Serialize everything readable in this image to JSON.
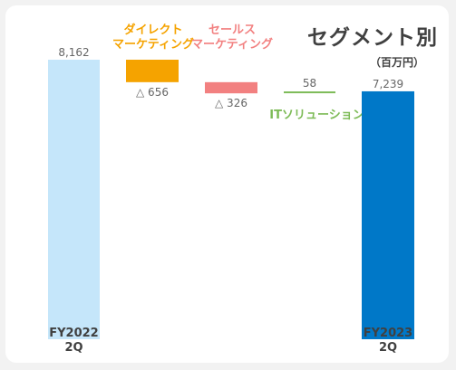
{
  "title": "セグメント別",
  "unit": "（百万円）",
  "chart_data": {
    "type": "waterfall",
    "categories": [
      [
        "FY2022",
        "2Q"
      ],
      [
        "ダイレクト",
        "マーケティング"
      ],
      [
        "セールス",
        "マーケティング"
      ],
      [
        "ITソリューション"
      ],
      [
        "FY2023",
        "2Q"
      ]
    ],
    "values": [
      8162,
      -656,
      -326,
      58,
      7239
    ],
    "value_labels": [
      "8,162",
      "△ 656",
      "△ 326",
      "58",
      "7,239"
    ],
    "kinds": [
      "total",
      "delta",
      "delta",
      "delta",
      "total"
    ],
    "colors": [
      "#c5e6fa",
      "#f5a300",
      "#f28080",
      "#7dbb57",
      "#0078c8"
    ],
    "label_colors": [
      "#404040",
      "#f5a300",
      "#f28080",
      "#7dbb57",
      "#404040"
    ]
  }
}
